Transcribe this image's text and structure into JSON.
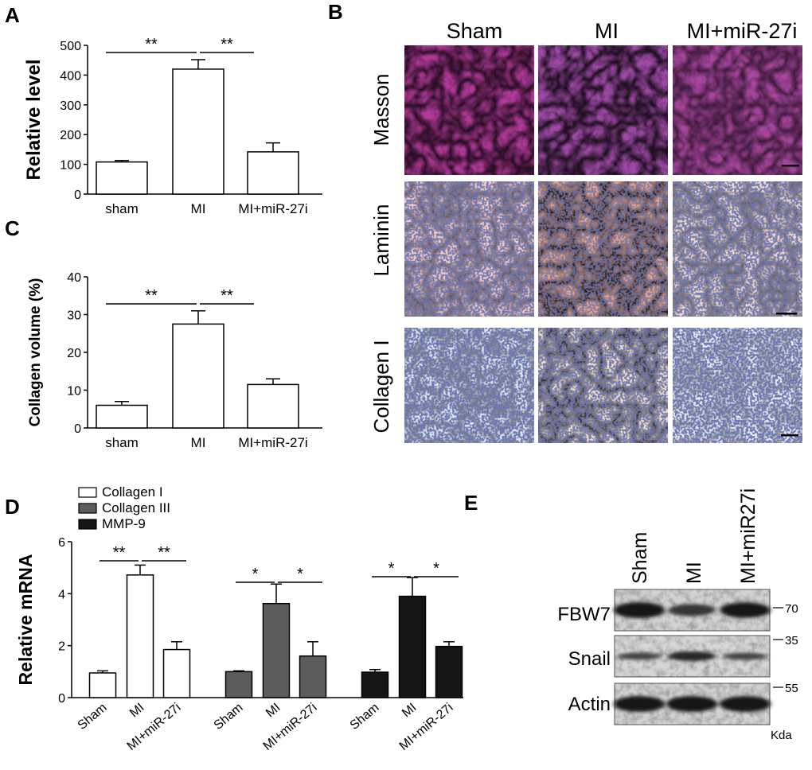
{
  "panels": {
    "A": "A",
    "B": "B",
    "C": "C",
    "D": "D",
    "E": "E"
  },
  "chart_data": [
    {
      "panel": "A",
      "type": "bar",
      "ylabel": "Relative level",
      "ylim": [
        0,
        500
      ],
      "yticks": [
        0,
        100,
        200,
        300,
        400,
        500
      ],
      "categories": [
        "sham",
        "MI",
        "MI+miR-27i"
      ],
      "values": [
        108,
        420,
        142
      ],
      "errors": [
        5,
        32,
        30
      ],
      "significance": [
        "**",
        "**"
      ],
      "colors": [
        "#ffffff",
        "#ffffff",
        "#ffffff"
      ]
    },
    {
      "panel": "C",
      "type": "bar",
      "ylabel": "Collagen volume (%)",
      "ylim": [
        0,
        40
      ],
      "yticks": [
        0,
        10,
        20,
        30,
        40
      ],
      "categories": [
        "sham",
        "MI",
        "MI+miR-27i"
      ],
      "values": [
        6,
        27.5,
        11.5
      ],
      "errors": [
        1,
        3.5,
        1.5
      ],
      "significance": [
        "**",
        "**"
      ],
      "colors": [
        "#ffffff",
        "#ffffff",
        "#ffffff"
      ]
    },
    {
      "panel": "D",
      "type": "bar",
      "ylabel": "Relative mRNA",
      "ylim": [
        0,
        6
      ],
      "yticks": [
        0,
        2,
        4,
        6
      ],
      "categories": [
        "Sham",
        "MI",
        "MI+miR-27i"
      ],
      "legend_position": "top-left",
      "series": [
        {
          "name": "Collagen I",
          "color": "#ffffff",
          "values": [
            0.95,
            4.72,
            1.85
          ],
          "errors": [
            0.08,
            0.38,
            0.3
          ],
          "significance": [
            "**",
            "**"
          ]
        },
        {
          "name": "Collagen III",
          "color": "#5c5c5c",
          "values": [
            1.0,
            3.62,
            1.6
          ],
          "errors": [
            0.03,
            0.75,
            0.55
          ],
          "significance": [
            "*",
            "*"
          ]
        },
        {
          "name": "MMP-9",
          "color": "#151515",
          "values": [
            0.98,
            3.9,
            1.97
          ],
          "errors": [
            0.1,
            0.72,
            0.18
          ],
          "significance": [
            "*",
            "*"
          ]
        }
      ]
    }
  ],
  "histology": {
    "columns": [
      "Sham",
      "MI",
      "MI+miR-27i"
    ],
    "rows": [
      "Masson",
      "Laminin",
      "Collagen I"
    ]
  },
  "western": {
    "lanes": [
      "Sham",
      "MI",
      "MI+miR27i"
    ],
    "proteins": [
      "FBW7",
      "Snail",
      "Actin"
    ],
    "markers": [
      "70",
      "35",
      "55"
    ],
    "unit": "Kda",
    "band_intensity": {
      "FBW7": [
        1.0,
        0.55,
        0.95
      ],
      "Snail": [
        0.35,
        0.75,
        0.35
      ],
      "Actin": [
        1.0,
        1.0,
        1.0
      ]
    }
  }
}
